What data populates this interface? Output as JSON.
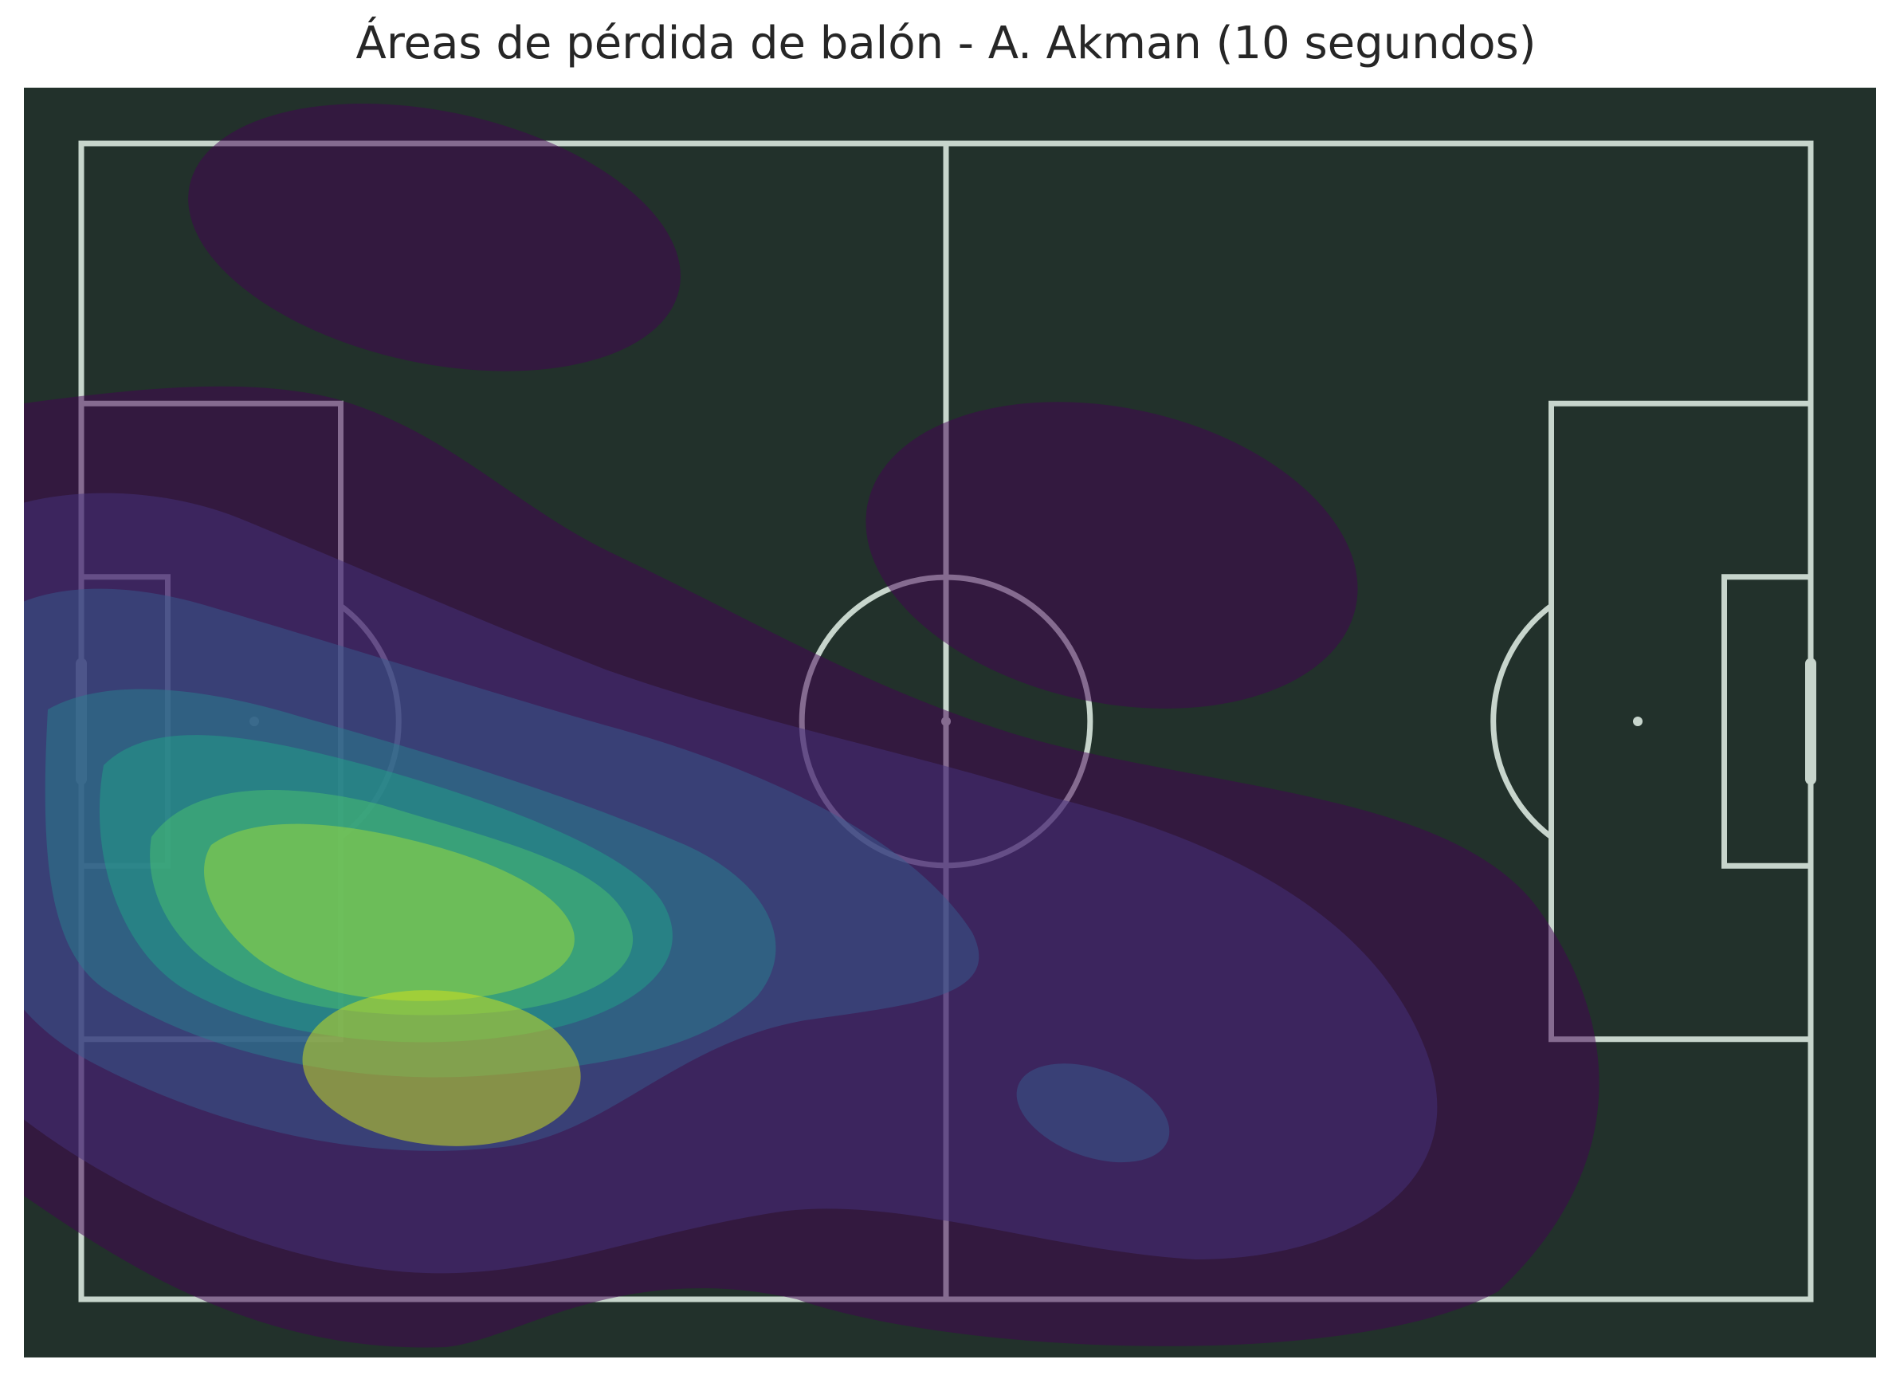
{
  "chart_data": {
    "type": "heatmap",
    "subtype": "kde-contour-on-football-pitch",
    "title": "Áreas de pérdida de balón - A. Akman (10 segundos)",
    "xlabel": "",
    "ylabel": "",
    "xlim": [
      0,
      120
    ],
    "ylim": [
      0,
      80
    ],
    "grid": false,
    "legend": "none",
    "colormap": "viridis",
    "levels": [
      {
        "level": 1,
        "color": "#440154"
      },
      {
        "level": 2,
        "color": "#46327e"
      },
      {
        "level": 3,
        "color": "#365c8d"
      },
      {
        "level": 4,
        "color": "#277f8e"
      },
      {
        "level": 5,
        "color": "#1fa187"
      },
      {
        "level": 6,
        "color": "#4ac16d"
      },
      {
        "level": 7,
        "color": "#a0da39"
      },
      {
        "level": 8,
        "color": "#d4e21a"
      }
    ],
    "hotspots": [
      {
        "name": "main",
        "x": 25,
        "y": 16,
        "peak_level": 8
      },
      {
        "name": "secondary",
        "x": 70,
        "y": 13,
        "peak_level": 3
      },
      {
        "name": "top-left-blob",
        "x": 24,
        "y": 74,
        "peak_level": 1
      },
      {
        "name": "top-right-blob",
        "x": 71,
        "y": 51,
        "peak_level": 1
      }
    ]
  },
  "colors": {
    "pitch_background": "#22312b",
    "pitch_lines": "#c7d5cc",
    "title_text": "#262626"
  }
}
